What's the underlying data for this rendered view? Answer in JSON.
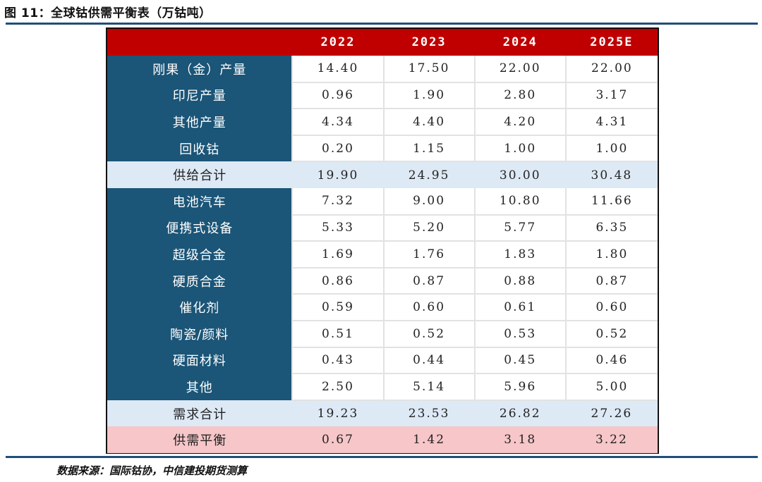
{
  "title": "图 11：全球钴供需平衡表（万钴吨）",
  "source": "数据来源：国际钴协，中信建投期货测算",
  "table": {
    "corner": "",
    "columns": [
      "2022",
      "2023",
      "2024",
      "2025E"
    ],
    "rows": [
      {
        "label": "刚果（金）产量",
        "type": "normal",
        "values": [
          "14.40",
          "17.50",
          "22.00",
          "22.00"
        ]
      },
      {
        "label": "印尼产量",
        "type": "normal",
        "values": [
          "0.96",
          "1.90",
          "2.80",
          "3.17"
        ]
      },
      {
        "label": "其他产量",
        "type": "normal",
        "values": [
          "4.34",
          "4.40",
          "4.20",
          "4.31"
        ]
      },
      {
        "label": "回收钴",
        "type": "normal",
        "values": [
          "0.20",
          "1.15",
          "1.00",
          "1.00"
        ]
      },
      {
        "label": "供给合计",
        "type": "total",
        "values": [
          "19.90",
          "24.95",
          "30.00",
          "30.48"
        ]
      },
      {
        "label": "电池汽车",
        "type": "normal",
        "values": [
          "7.32",
          "9.00",
          "10.80",
          "11.66"
        ]
      },
      {
        "label": "便携式设备",
        "type": "normal",
        "values": [
          "5.33",
          "5.20",
          "5.77",
          "6.35"
        ]
      },
      {
        "label": "超级合金",
        "type": "normal",
        "values": [
          "1.69",
          "1.76",
          "1.83",
          "1.80"
        ]
      },
      {
        "label": "硬质合金",
        "type": "normal",
        "values": [
          "0.86",
          "0.87",
          "0.88",
          "0.87"
        ]
      },
      {
        "label": "催化剂",
        "type": "normal",
        "values": [
          "0.59",
          "0.60",
          "0.61",
          "0.60"
        ]
      },
      {
        "label": "陶瓷/颜料",
        "type": "normal",
        "values": [
          "0.51",
          "0.52",
          "0.53",
          "0.52"
        ]
      },
      {
        "label": "硬面材料",
        "type": "normal",
        "values": [
          "0.43",
          "0.44",
          "0.45",
          "0.46"
        ]
      },
      {
        "label": "其他",
        "type": "normal",
        "values": [
          "2.50",
          "5.14",
          "5.96",
          "5.00"
        ]
      },
      {
        "label": "需求合计",
        "type": "total",
        "values": [
          "19.23",
          "23.53",
          "26.82",
          "27.26"
        ]
      },
      {
        "label": "供需平衡",
        "type": "balance",
        "values": [
          "0.67",
          "1.42",
          "3.18",
          "3.22"
        ]
      }
    ]
  },
  "colors": {
    "header": "#c00000",
    "label_cell": "#1b5577",
    "total_row": "#dde9f5",
    "balance_row": "#f6c6c9",
    "rule": "#1f4e79"
  }
}
